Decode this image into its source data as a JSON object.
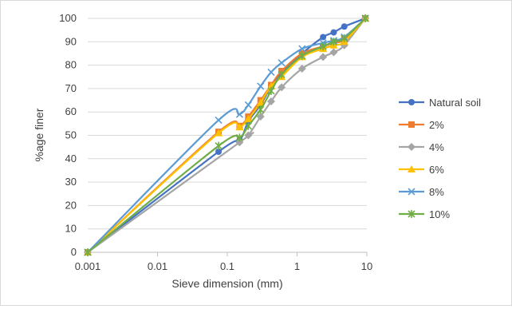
{
  "chart_data": {
    "type": "line",
    "x_scale": "log",
    "xlabel": "Sieve dimension (mm)",
    "ylabel": "%age finer",
    "xlim": [
      0.001,
      10
    ],
    "ylim": [
      0,
      100
    ],
    "x_ticks": [
      "0.001",
      "0.01",
      "0.1",
      "1",
      "10"
    ],
    "y_ticks": [
      "0",
      "10",
      "20",
      "30",
      "40",
      "50",
      "60",
      "70",
      "80",
      "90",
      "100"
    ],
    "grid": "horizontal",
    "legend_position": "right",
    "series": [
      {
        "name": "Natural soil",
        "color": "#4472C4",
        "marker": "circle",
        "x": [
          0.001,
          0.075,
          0.15,
          0.2,
          0.3,
          0.425,
          0.6,
          1.18,
          2.36,
          3.35,
          4.75,
          9.5
        ],
        "y": [
          0,
          43,
          48,
          56,
          63,
          71,
          77,
          85,
          92,
          94,
          96.5,
          100
        ]
      },
      {
        "name": "2%",
        "color": "#ED7D31",
        "marker": "square",
        "x": [
          0.001,
          0.075,
          0.15,
          0.2,
          0.3,
          0.425,
          0.6,
          1.18,
          2.36,
          3.35,
          4.75,
          9.5
        ],
        "y": [
          0,
          51.5,
          54,
          58,
          65,
          71.5,
          77.5,
          85,
          88,
          89.5,
          91,
          100
        ]
      },
      {
        "name": "4%",
        "color": "#A5A5A5",
        "marker": "diamond",
        "x": [
          0.001,
          0.15,
          0.2,
          0.3,
          0.425,
          0.6,
          1.18,
          2.36,
          3.35,
          4.75,
          9.5
        ],
        "y": [
          0,
          47,
          50,
          58,
          64.5,
          70.5,
          78.5,
          83.5,
          85.5,
          88.5,
          100
        ]
      },
      {
        "name": "6%",
        "color": "#FFC000",
        "marker": "triangle",
        "x": [
          0.001,
          0.075,
          0.15,
          0.2,
          0.3,
          0.425,
          0.6,
          1.18,
          2.36,
          3.35,
          4.75,
          9.5
        ],
        "y": [
          0,
          51,
          53.5,
          57,
          64,
          71,
          75,
          83.5,
          87,
          88.5,
          90,
          100
        ]
      },
      {
        "name": "8%",
        "color": "#5B9BD5",
        "marker": "x",
        "x": [
          0.001,
          0.075,
          0.15,
          0.2,
          0.3,
          0.425,
          0.6,
          1.18,
          2.36,
          3.35,
          4.75,
          9.5
        ],
        "y": [
          0,
          56.5,
          59,
          63,
          71,
          77,
          81,
          87,
          89.5,
          90.5,
          92,
          100
        ]
      },
      {
        "name": "10%",
        "color": "#70AD47",
        "marker": "star",
        "x": [
          0.001,
          0.075,
          0.15,
          0.2,
          0.3,
          0.425,
          0.6,
          1.18,
          2.36,
          3.35,
          4.75,
          9.5
        ],
        "y": [
          0,
          45.5,
          49,
          54,
          61,
          69,
          76,
          84,
          88,
          90,
          91.5,
          100
        ]
      }
    ]
  }
}
